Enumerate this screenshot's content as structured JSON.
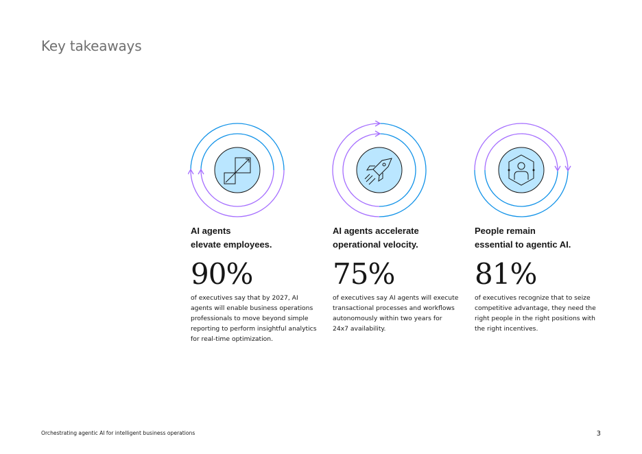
{
  "page": {
    "title": "Key takeaways",
    "footer": "Orchestrating agentic AI for intelligent business operations",
    "page_number": "3"
  },
  "colors": {
    "ring_blue": "#1192e8",
    "ring_purple": "#a56eff",
    "icon_fill": "#bae6ff",
    "text": "#161616",
    "title_gray": "#6f6f6f"
  },
  "takeaways": [
    {
      "icon": "growth-chart-icon",
      "heading_lines": [
        "AI agents",
        "elevate employees."
      ],
      "stat": "90%",
      "description_lines": [
        "of executives say that by 2027, AI",
        "agents will enable business operations",
        "professionals to move beyond simple",
        "reporting to perform insightful analytics",
        "for real-time optimization."
      ]
    },
    {
      "icon": "rocket-icon",
      "heading_lines": [
        "AI agents accelerate",
        "operational velocity."
      ],
      "stat": "75%",
      "description_lines": [
        "of executives say AI agents will execute",
        "transactional processes and workflows",
        "autonomously within two years for",
        "24x7 availability."
      ]
    },
    {
      "icon": "person-network-icon",
      "heading_lines": [
        "People remain",
        "essential to agentic AI."
      ],
      "stat": "81%",
      "description_lines": [
        "of executives recognize that to seize",
        "competitive advantage, they need the",
        "right people in the right positions with",
        "the right incentives."
      ]
    }
  ]
}
